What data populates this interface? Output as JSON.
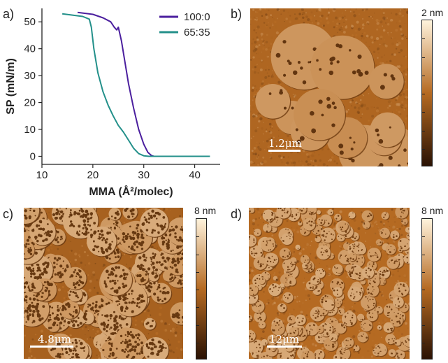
{
  "panels": {
    "a": "a)",
    "b": "b)",
    "c": "c)",
    "d": "d)"
  },
  "chart_data": {
    "type": "line",
    "title": "",
    "xlabel": "MMA (Å²/molec)",
    "ylabel": "SP (mN/m)",
    "xlim": [
      10,
      45
    ],
    "ylim": [
      -3,
      55
    ],
    "xticks": [
      10,
      20,
      30,
      40
    ],
    "yticks": [
      0,
      10,
      20,
      30,
      40,
      50
    ],
    "grid": false,
    "legend_position": "top-right",
    "series": [
      {
        "name": "100:0",
        "color": "#4b1f9e",
        "x": [
          17.0,
          20.0,
          22.0,
          23.5,
          24.2,
          24.7,
          25.0,
          25.6,
          26.3,
          27.0,
          28.0,
          29.0,
          30.0,
          30.8,
          31.5,
          32.0,
          33.0,
          36.0,
          40.0
        ],
        "y": [
          53.5,
          52.8,
          51.5,
          50.0,
          48.0,
          47.0,
          48.0,
          43.0,
          35.0,
          27.0,
          18.0,
          10.0,
          4.5,
          1.5,
          0.3,
          0.0,
          0.0,
          0.0,
          0.0
        ]
      },
      {
        "name": "65:35",
        "color": "#23908a",
        "x": [
          14.0,
          16.0,
          18.0,
          19.3,
          19.7,
          20.2,
          21.0,
          22.0,
          23.0,
          24.0,
          25.0,
          26.0,
          27.0,
          28.0,
          29.0,
          30.0,
          31.0,
          33.0,
          38.0,
          43.0
        ],
        "y": [
          53.0,
          52.5,
          52.0,
          51.0,
          48.0,
          40.0,
          31.0,
          24.0,
          19.0,
          15.0,
          11.5,
          9.0,
          6.0,
          3.0,
          1.0,
          0.2,
          0.0,
          0.0,
          0.0,
          0.0
        ]
      }
    ]
  },
  "images": {
    "b": {
      "scalebar": "1.2μm",
      "colorbar_max": "2 nm"
    },
    "c": {
      "scalebar": "4.8μm",
      "colorbar_max": "8 nm"
    },
    "d": {
      "scalebar": "12μm",
      "colorbar_max": "8 nm"
    }
  },
  "colors": {
    "afm_dark": "#2a1204",
    "afm_mid": "#b56a22",
    "afm_light": "#fff3dc"
  }
}
